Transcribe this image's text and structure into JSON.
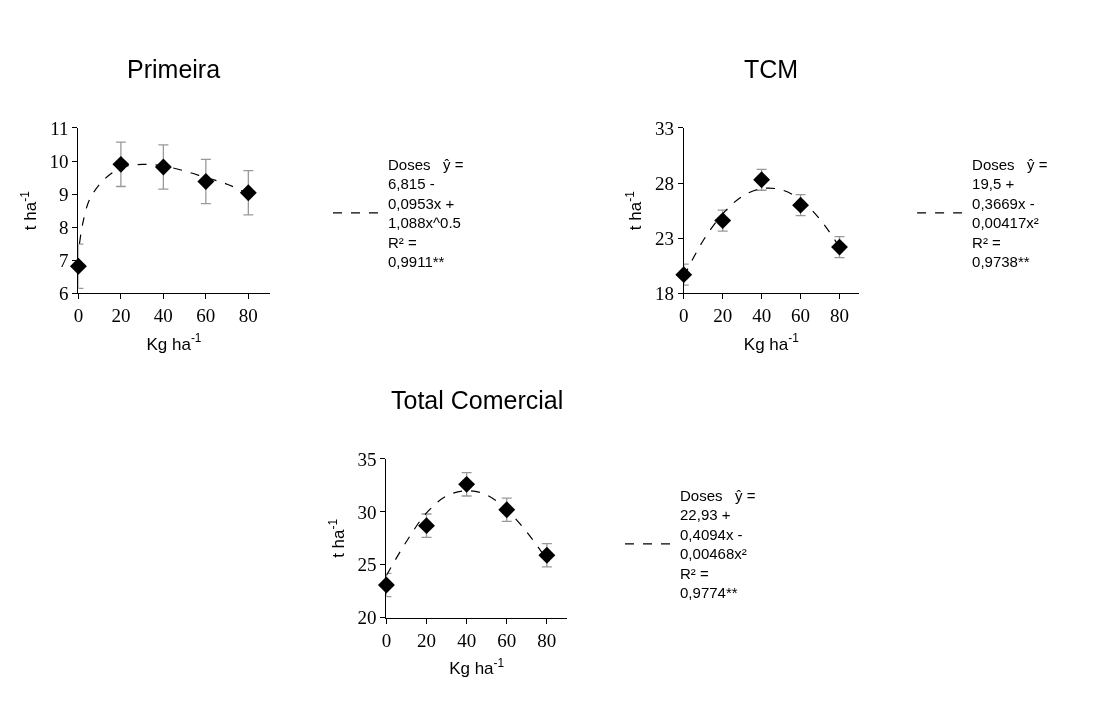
{
  "chart_data": [
    {
      "type": "scatter",
      "title": "Primeira",
      "xlabel": "Kg ha$^{-1}$",
      "ylabel": "t ha$^{-1}$",
      "x": [
        0,
        20,
        40,
        60,
        80
      ],
      "xlim": [
        0,
        90
      ],
      "xticks": [
        0,
        20,
        40,
        60,
        80
      ],
      "ylim": [
        6,
        11
      ],
      "yticks": [
        6,
        7,
        8,
        9,
        10,
        11
      ],
      "legend": "right",
      "series": [
        {
          "values": [
            6.82,
            9.9,
            9.82,
            9.38,
            9.04
          ],
          "errors": [
            0.67,
            0.67,
            0.67,
            0.67,
            0.67
          ],
          "color": "#000000",
          "marker": "diamond"
        },
        {
          "type": "line",
          "name": "Doses   ŷ = 6,815 - 0,0953x + 1,088x^0.5   R² = 0,9911**",
          "x": [
            0.5,
            2,
            5,
            10,
            15,
            20,
            30,
            40,
            50,
            60,
            70,
            80
          ],
          "values": [
            7.5,
            8.1,
            8.8,
            9.3,
            9.6,
            9.8,
            9.9,
            9.85,
            9.7,
            9.5,
            9.3,
            9.0
          ],
          "color": "#000000",
          "marker": "none",
          "line_style": "dashed"
        }
      ]
    },
    {
      "type": "scatter",
      "title": "TCM",
      "xlabel": "Kg ha$^{-1}$",
      "ylabel": "t ha$^{-1}$",
      "x": [
        0,
        20,
        40,
        60,
        80
      ],
      "xlim": [
        0,
        90
      ],
      "xticks": [
        0,
        20,
        40,
        60,
        80
      ],
      "ylim": [
        18,
        33
      ],
      "yticks": [
        18,
        23,
        28,
        33
      ],
      "legend": "right",
      "series": [
        {
          "values": [
            19.7,
            24.6,
            28.3,
            26.0,
            22.2
          ],
          "errors": [
            0.95,
            0.95,
            0.95,
            0.95,
            0.95
          ],
          "color": "#000000",
          "marker": "diamond"
        },
        {
          "type": "line",
          "name": "Doses   ŷ = 19,5 + 0,3669x - 0,00417x²   R² = 0,9738**",
          "x": [
            0,
            10,
            20,
            30,
            40,
            50,
            60,
            70,
            80
          ],
          "values": [
            19.5,
            22.8,
            25.2,
            26.8,
            27.5,
            27.4,
            26.5,
            24.7,
            22.2
          ],
          "color": "#000000",
          "marker": "none",
          "line_style": "dashed"
        }
      ]
    },
    {
      "type": "scatter",
      "title": "Total Comercial",
      "xlabel": "Kg ha$^{-1}$",
      "ylabel": "t ha$^{-1}$",
      "x": [
        0,
        20,
        40,
        60,
        80
      ],
      "xlim": [
        0,
        90
      ],
      "xticks": [
        0,
        20,
        40,
        60,
        80
      ],
      "ylim": [
        20,
        35
      ],
      "yticks": [
        20,
        25,
        30,
        35
      ],
      "legend": "right",
      "series": [
        {
          "values": [
            23.1,
            28.7,
            32.6,
            30.2,
            25.9
          ],
          "errors": [
            1.1,
            1.1,
            1.1,
            1.1,
            1.1
          ],
          "color": "#000000",
          "marker": "diamond"
        },
        {
          "type": "line",
          "name": "Doses   ŷ = 22,93 + 0,4094x - 0,00468x²   R² = 0,9774**",
          "x": [
            0,
            10,
            20,
            30,
            40,
            50,
            60,
            70,
            80
          ],
          "values": [
            24.0,
            27.2,
            29.9,
            31.5,
            32.0,
            31.6,
            30.2,
            28.1,
            25.5
          ],
          "color": "#000000",
          "marker": "none",
          "line_style": "dashed"
        }
      ]
    }
  ]
}
